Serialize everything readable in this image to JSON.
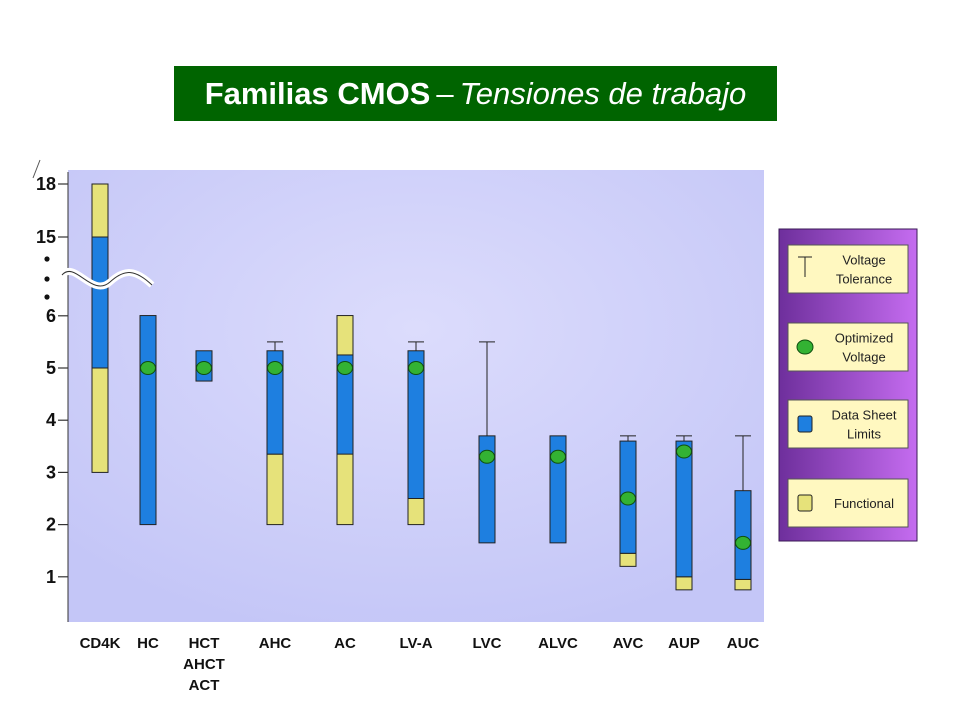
{
  "title": {
    "main": "Familias CMOS",
    "separator": "–",
    "sub": "Tensiones de trabajo"
  },
  "colors": {
    "banner": "#006400",
    "plot_background": "#cfd0fb",
    "data_sheet": "#1e7fe0",
    "functional": "#e6e27a",
    "optimized": "#33b233",
    "legend_panel": "#8c45c8"
  },
  "legend": [
    {
      "key": "tolerance",
      "label_lines": [
        "Voltage",
        "Tolerance"
      ]
    },
    {
      "key": "optimized",
      "label_lines": [
        "Optimized",
        "Voltage"
      ]
    },
    {
      "key": "datasheet",
      "label_lines": [
        "Data Sheet",
        "Limits"
      ]
    },
    {
      "key": "functional",
      "label_lines": [
        "Functional"
      ]
    }
  ],
  "chart_data": {
    "type": "range-bar",
    "y_ticks": [
      1,
      2,
      3,
      4,
      5,
      6,
      15,
      18
    ],
    "y_axis_break": "between 6 and 15",
    "grid": false,
    "legend_placement": "right",
    "categories": [
      {
        "label_lines": [
          "CD4K"
        ],
        "functional": [
          3,
          18
        ],
        "datasheet": [
          5,
          15
        ],
        "optimized": null,
        "tolerance": null
      },
      {
        "label_lines": [
          "HC"
        ],
        "functional": null,
        "datasheet": [
          2,
          6.05
        ],
        "optimized": 5,
        "tolerance": null
      },
      {
        "label_lines": [
          "HCT",
          "AHCT",
          "ACT"
        ],
        "functional": null,
        "datasheet": [
          4.75,
          5.33
        ],
        "optimized": 5,
        "tolerance": null
      },
      {
        "label_lines": [
          "AHC"
        ],
        "functional": [
          2,
          3.35
        ],
        "datasheet": [
          3.35,
          5.33
        ],
        "optimized": 5,
        "tolerance": 5.5
      },
      {
        "label_lines": [
          "AC"
        ],
        "functional": [
          2,
          6.05
        ],
        "datasheet": [
          3.35,
          5.25
        ],
        "optimized": 5,
        "tolerance": null
      },
      {
        "label_lines": [
          "LV-A"
        ],
        "functional": [
          2,
          2.5
        ],
        "datasheet": [
          2.5,
          5.33
        ],
        "optimized": 5,
        "tolerance": 5.5
      },
      {
        "label_lines": [
          "LVC"
        ],
        "functional": null,
        "datasheet": [
          1.65,
          3.7
        ],
        "optimized": 3.3,
        "tolerance": 5.5
      },
      {
        "label_lines": [
          "ALVC"
        ],
        "functional": null,
        "datasheet": [
          1.65,
          3.7
        ],
        "optimized": 3.3,
        "tolerance": null
      },
      {
        "label_lines": [
          "AVC"
        ],
        "functional": [
          1.2,
          1.45
        ],
        "datasheet": [
          1.45,
          3.6
        ],
        "optimized": 2.5,
        "tolerance": 3.7
      },
      {
        "label_lines": [
          "AUP"
        ],
        "functional": [
          0.75,
          1.0
        ],
        "datasheet": [
          1.0,
          3.6
        ],
        "optimized": 3.4,
        "tolerance": 3.7
      },
      {
        "label_lines": [
          "AUC"
        ],
        "functional": [
          0.75,
          0.95
        ],
        "datasheet": [
          0.95,
          2.65
        ],
        "optimized": 1.65,
        "tolerance": 3.7
      }
    ]
  }
}
